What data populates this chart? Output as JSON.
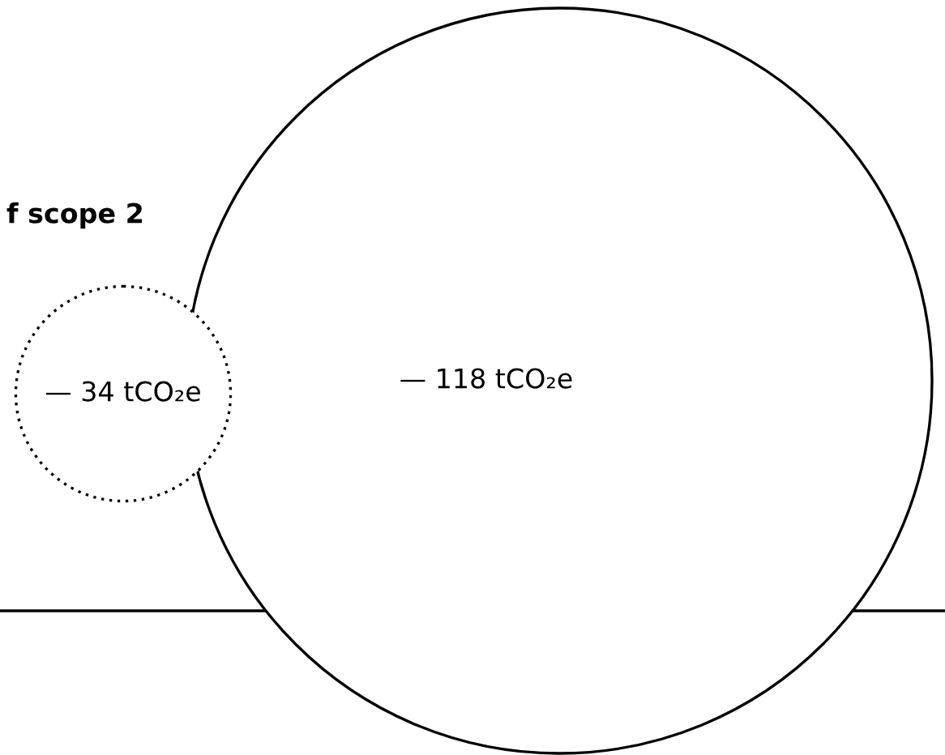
{
  "chart_data": {
    "type": "other",
    "title": "f scope 2",
    "categories": [
      null,
      null
    ],
    "values": [
      34,
      118
    ],
    "value_labels": [
      "— 34 tCO₂e",
      "— 118 tCO₂e"
    ],
    "colors": [
      "#000000",
      "#000000"
    ]
  }
}
